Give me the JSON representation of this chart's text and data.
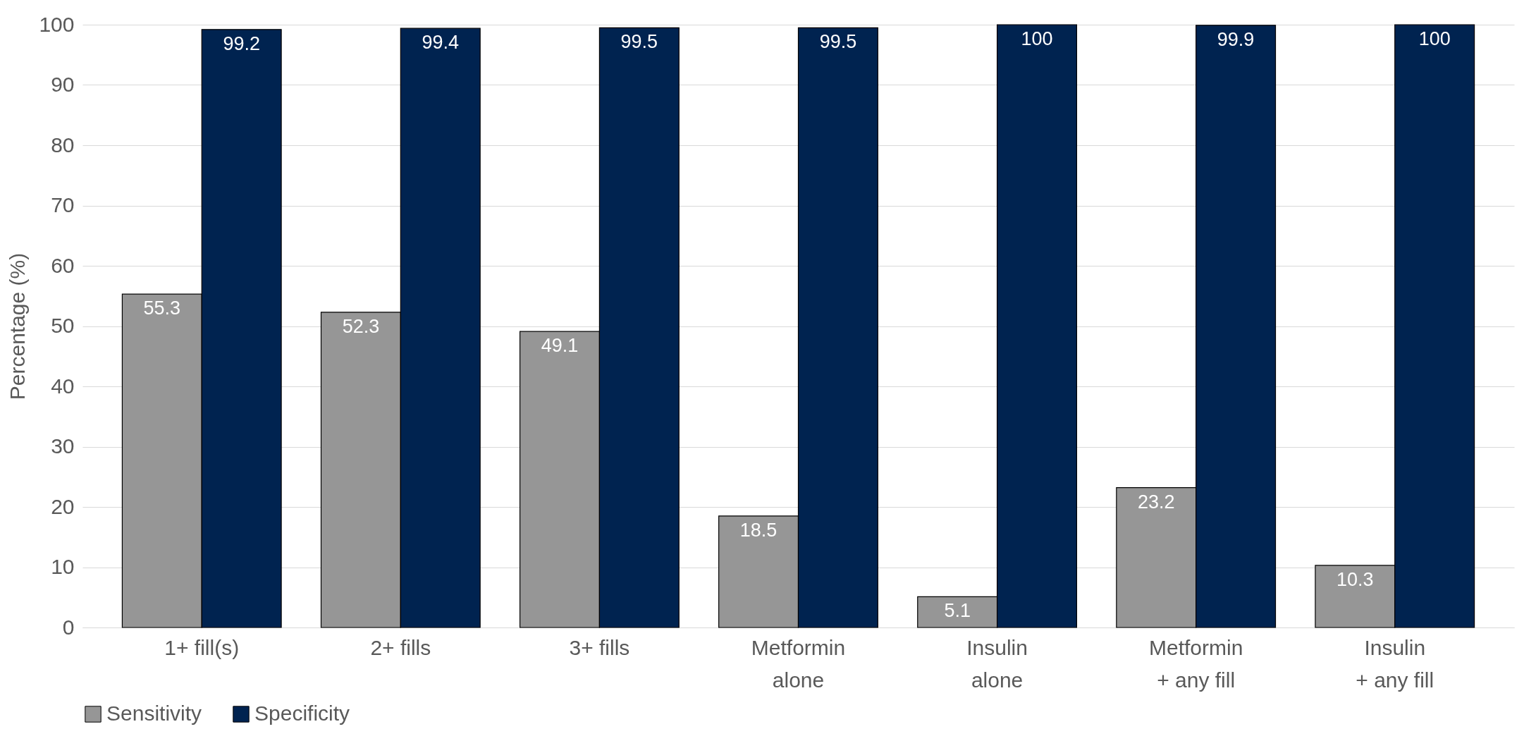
{
  "chart_data": {
    "type": "bar",
    "ylabel": "Percentage (%)",
    "categories": [
      "1+ fill(s)",
      "2+ fills",
      "3+ fills",
      "Metformin alone",
      "Insulin alone",
      "Metformin + any fill",
      "Insulin + any fill"
    ],
    "series": [
      {
        "name": "Sensitivity",
        "color": "#969696",
        "values": [
          55.3,
          52.3,
          49.1,
          18.5,
          5.1,
          23.2,
          10.3
        ]
      },
      {
        "name": "Specificity",
        "color": "#002350",
        "values": [
          99.2,
          99.4,
          99.5,
          99.5,
          100,
          99.9,
          100
        ]
      }
    ],
    "ylim": [
      0,
      100
    ],
    "yticks": [
      0,
      10,
      20,
      30,
      40,
      50,
      60,
      70,
      80,
      90,
      100
    ],
    "grid": "y",
    "legend": "bottom",
    "data_labels": true
  }
}
